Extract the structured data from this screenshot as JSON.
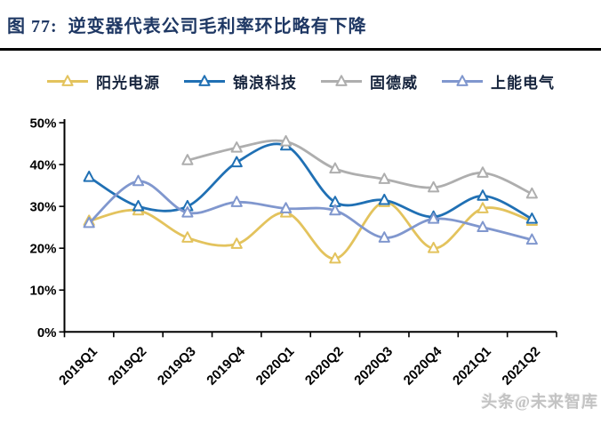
{
  "title": "图 77:  逆变器代表公司毛利率环比略有下降",
  "watermark": "头条@未来智库",
  "accent_color": "#1f3864",
  "rule_color": "#000000",
  "chart_data": {
    "type": "line",
    "title": "逆变器代表公司毛利率环比略有下降",
    "categories": [
      "2019Q1",
      "2019Q2",
      "2019Q3",
      "2019Q4",
      "2020Q1",
      "2020Q2",
      "2020Q3",
      "2020Q4",
      "2021Q1",
      "2021Q2"
    ],
    "series": [
      {
        "name": "阳光电源",
        "color": "#e3c35d",
        "values": [
          26.5,
          29,
          22.5,
          21,
          28.5,
          17.5,
          31,
          20,
          29.5,
          26.5
        ]
      },
      {
        "name": "锦浪科技",
        "color": "#2070b4",
        "values": [
          37,
          30,
          30,
          40.5,
          44.5,
          31,
          31.5,
          27.5,
          32.5,
          27
        ]
      },
      {
        "name": "固德威",
        "color": "#aeaeae",
        "values": [
          null,
          null,
          41,
          44,
          45.5,
          39,
          36.5,
          34.5,
          38,
          33
        ]
      },
      {
        "name": "上能电气",
        "color": "#8097ce",
        "values": [
          26,
          36,
          28.5,
          31,
          29.5,
          29,
          22.5,
          27,
          25,
          22
        ]
      }
    ],
    "ylabel": "",
    "xlabel": "",
    "y_ticks": [
      0,
      10,
      20,
      30,
      40,
      50
    ],
    "y_tick_format": "percent",
    "ylim": [
      0,
      50
    ],
    "grid": false,
    "legend_position": "top",
    "marker": "open-triangle",
    "line_style": "smooth",
    "x_label_rotation": -45
  }
}
